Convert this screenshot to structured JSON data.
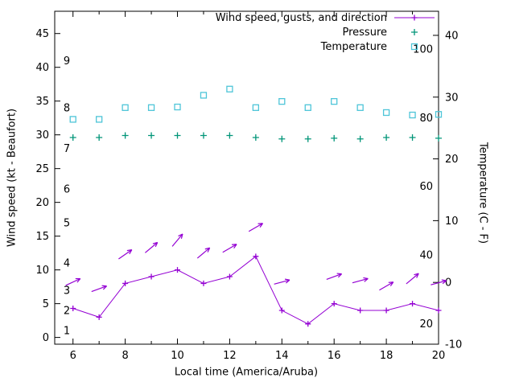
{
  "colors": {
    "wind": "#9400d3",
    "pressure": "#009578",
    "temperature": "#4ec5d8",
    "axis": "#000000",
    "background": "#ffffff"
  },
  "chart_data": {
    "type": "line",
    "title": "",
    "xlabel": "Local time (America/Aruba)",
    "ylabel_left": "Wind speed (kt - Beaufort)",
    "ylabel_right": "Temperature (C - F)",
    "grid": false,
    "legend_position": "top-right-inside",
    "xlim": [
      5.3,
      20
    ],
    "ylim_kt": [
      -1,
      48.3
    ],
    "ylim_c": [
      -10,
      43.9
    ],
    "x_ticks": [
      6,
      8,
      10,
      12,
      14,
      16,
      18,
      20
    ],
    "x_minor_ticks": [
      7,
      9,
      11,
      13,
      15,
      17,
      19
    ],
    "left_ticks_kt": [
      0,
      5,
      10,
      15,
      20,
      25,
      30,
      35,
      40,
      45
    ],
    "beaufort_labels": [
      {
        "label": "1",
        "kt": 1
      },
      {
        "label": "2",
        "kt": 4
      },
      {
        "label": "3",
        "kt": 7
      },
      {
        "label": "4",
        "kt": 11
      },
      {
        "label": "5",
        "kt": 17
      },
      {
        "label": "6",
        "kt": 22
      },
      {
        "label": "7",
        "kt": 28
      },
      {
        "label": "8",
        "kt": 34
      },
      {
        "label": "9",
        "kt": 41
      }
    ],
    "right_ticks_c": [
      -10,
      0,
      10,
      20,
      30,
      40
    ],
    "fahrenheit_labels": [
      20,
      40,
      60,
      80,
      100
    ],
    "x": [
      6,
      7,
      8,
      9,
      10,
      11,
      12,
      13,
      14,
      15,
      16,
      17,
      18,
      19,
      20
    ],
    "series": [
      {
        "name": "Wind speed (kt)",
        "key": "wind",
        "values": [
          4.3,
          3,
          8,
          9,
          10,
          8,
          9,
          12,
          4,
          2,
          5,
          4,
          4,
          5,
          4
        ]
      },
      {
        "name": "Pressure (plotted height on left axis)",
        "key": "pressure",
        "values": [
          29.6,
          29.6,
          29.9,
          29.9,
          29.9,
          29.9,
          29.9,
          29.6,
          29.4,
          29.4,
          29.5,
          29.4,
          29.6,
          29.6,
          29.5
        ]
      },
      {
        "name": "Temperature (C)",
        "key": "temperature",
        "values": [
          26.4,
          26.4,
          28.3,
          28.3,
          28.4,
          30.3,
          31.3,
          28.3,
          29.3,
          28.3,
          29.3,
          28.3,
          27.5,
          27.1,
          27.2
        ]
      }
    ],
    "wind_direction_arrows": [
      {
        "x": 6,
        "y_kt": 8.2,
        "angle_deg": 25
      },
      {
        "x": 7,
        "y_kt": 7.2,
        "angle_deg": 20
      },
      {
        "x": 8,
        "y_kt": 12.3,
        "angle_deg": 35
      },
      {
        "x": 9,
        "y_kt": 13.3,
        "angle_deg": 40
      },
      {
        "x": 10,
        "y_kt": 14.4,
        "angle_deg": 50
      },
      {
        "x": 11,
        "y_kt": 12.5,
        "angle_deg": 40
      },
      {
        "x": 12,
        "y_kt": 13.2,
        "angle_deg": 30
      },
      {
        "x": 13,
        "y_kt": 16.3,
        "angle_deg": 30
      },
      {
        "x": 14,
        "y_kt": 8.2,
        "angle_deg": 15
      },
      {
        "x": 16,
        "y_kt": 9.0,
        "angle_deg": 20
      },
      {
        "x": 17,
        "y_kt": 8.4,
        "angle_deg": 15
      },
      {
        "x": 18,
        "y_kt": 7.6,
        "angle_deg": 30
      },
      {
        "x": 19,
        "y_kt": 8.7,
        "angle_deg": 40
      },
      {
        "x": 20,
        "y_kt": 8.1,
        "angle_deg": 15
      }
    ],
    "legend": [
      {
        "label": "Wind speed, gusts, and direction",
        "key": "wind",
        "marker": "line-plus"
      },
      {
        "label": "Pressure",
        "key": "pressure",
        "marker": "plus"
      },
      {
        "label": "Temperature",
        "key": "temperature",
        "marker": "open-square"
      }
    ]
  }
}
